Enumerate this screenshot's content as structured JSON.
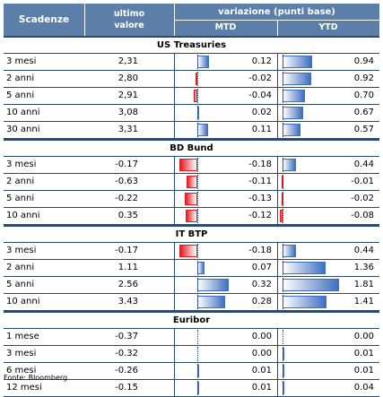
{
  "headers": {
    "scadenze": "Scadenze",
    "ultimo_l1": "ultimo",
    "ultimo_l2": "valore",
    "variazione": "variazione (punti base)",
    "mtd": "MTD",
    "ytd": "YTD"
  },
  "colors": {
    "header_bg": "#5b7fa8",
    "positive": "#3f6fc2",
    "negative": "#e51c23",
    "rule": "#2b4a6e"
  },
  "sections": [
    {
      "title": "US Treasuries",
      "rows": [
        {
          "label": "3 mesi",
          "value": "2,31",
          "mtd": "0.12",
          "ytd": "0.94",
          "mtd_v": 0.12,
          "ytd_v": 0.94
        },
        {
          "label": "2 anni",
          "value": "2,80",
          "mtd": "-0.02",
          "ytd": "0.92",
          "mtd_v": -0.02,
          "ytd_v": 0.92
        },
        {
          "label": "5 anni",
          "value": "2,91",
          "mtd": "-0.04",
          "ytd": "0.70",
          "mtd_v": -0.04,
          "ytd_v": 0.7
        },
        {
          "label": "10 anni",
          "value": "3,08",
          "mtd": "0.02",
          "ytd": "0.67",
          "mtd_v": 0.02,
          "ytd_v": 0.67
        },
        {
          "label": "30 anni",
          "value": "3,31",
          "mtd": "0.11",
          "ytd": "0.57",
          "mtd_v": 0.11,
          "ytd_v": 0.57
        }
      ]
    },
    {
      "title": "BD Bund",
      "rows": [
        {
          "label": "3 mesi",
          "value": "-0.17",
          "mtd": "-0.18",
          "ytd": "0.44",
          "mtd_v": -0.18,
          "ytd_v": 0.44
        },
        {
          "label": "2 anni",
          "value": "-0.63",
          "mtd": "-0.11",
          "ytd": "-0.01",
          "mtd_v": -0.11,
          "ytd_v": -0.01
        },
        {
          "label": "5 anni",
          "value": "-0.22",
          "mtd": "-0.13",
          "ytd": "-0.02",
          "mtd_v": -0.13,
          "ytd_v": -0.02
        },
        {
          "label": "10 anni",
          "value": "0.35",
          "mtd": "-0.12",
          "ytd": "-0.08",
          "mtd_v": -0.12,
          "ytd_v": -0.08
        }
      ]
    },
    {
      "title": "IT BTP",
      "rows": [
        {
          "label": "3 mesi",
          "value": "-0.17",
          "mtd": "-0.18",
          "ytd": "0.44",
          "mtd_v": -0.18,
          "ytd_v": 0.44
        },
        {
          "label": "2 anni",
          "value": "1.11",
          "mtd": "0.07",
          "ytd": "1.36",
          "mtd_v": 0.07,
          "ytd_v": 1.36
        },
        {
          "label": "5 anni",
          "value": "2.56",
          "mtd": "0.32",
          "ytd": "1.81",
          "mtd_v": 0.32,
          "ytd_v": 1.81
        },
        {
          "label": "10 anni",
          "value": "3.43",
          "mtd": "0.28",
          "ytd": "1.41",
          "mtd_v": 0.28,
          "ytd_v": 1.41
        }
      ]
    },
    {
      "title": "Euribor",
      "rows": [
        {
          "label": "1 mese",
          "value": "-0.37",
          "mtd": "0.00",
          "ytd": "0.00",
          "mtd_v": 0.0,
          "ytd_v": 0.0
        },
        {
          "label": "3 mesi",
          "value": "-0.32",
          "mtd": "0.00",
          "ytd": "0.01",
          "mtd_v": 0.0,
          "ytd_v": 0.01
        },
        {
          "label": "6 mesi",
          "value": "-0.26",
          "mtd": "0.01",
          "ytd": "0.01",
          "mtd_v": 0.01,
          "ytd_v": 0.01
        },
        {
          "label": "12 mesi",
          "value": "-0.15",
          "mtd": "0.01",
          "ytd": "0.04",
          "mtd_v": 0.01,
          "ytd_v": 0.04
        }
      ]
    }
  ],
  "footer": "Fonte: Bloomberg"
}
